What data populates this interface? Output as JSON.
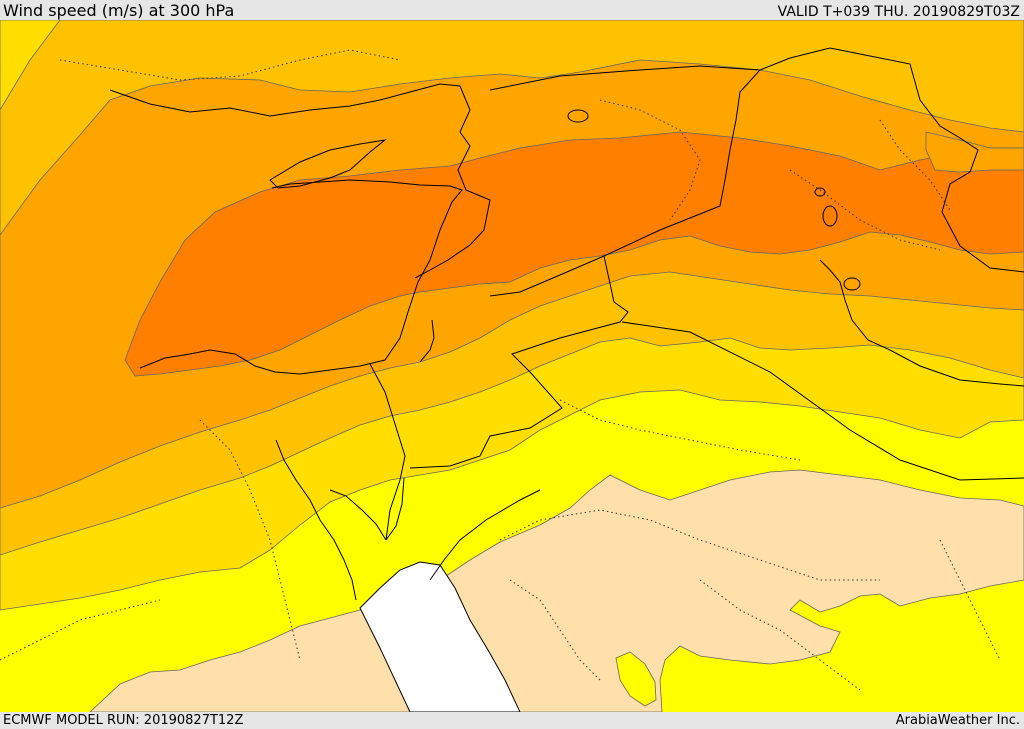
{
  "header": {
    "title": "Wind speed (m/s) at 300 hPa",
    "valid": "VALID T+039 THU. 20190829T03Z"
  },
  "footer": {
    "model_run": "ECMWF MODEL RUN: 20190827T12Z",
    "credit": "ArabiaWeather Inc."
  },
  "map": {
    "colors": {
      "sea": "#ffffff",
      "calm": "#ffe0aa",
      "band_yellow": "#ffff00",
      "band_gold": "#ffde00",
      "band_amber": "#ffc200",
      "band_orange": "#ffa500",
      "band_dark_orange": "#ff7f00",
      "contour": "#555555",
      "border": "#000000"
    }
  }
}
